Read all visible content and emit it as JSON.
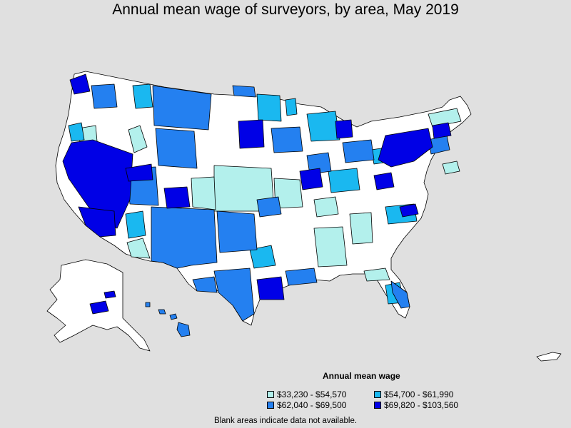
{
  "title": "Annual mean wage of surveyors, by area, May 2019",
  "legend": {
    "title": "Annual mean wage",
    "items": [
      {
        "label": "$33,230 - $54,570",
        "color": "#b3f0ec"
      },
      {
        "label": "$54,700 - $61,990",
        "color": "#1ab8f0"
      },
      {
        "label": "$62,040 - $69,500",
        "color": "#2480f0"
      },
      {
        "label": "$69,820 - $103,560",
        "color": "#0000e6"
      }
    ]
  },
  "note": "Blank areas indicate data not available.",
  "colors": {
    "background": "#e0e0e0",
    "blank": "#ffffff",
    "border": "#000000"
  }
}
